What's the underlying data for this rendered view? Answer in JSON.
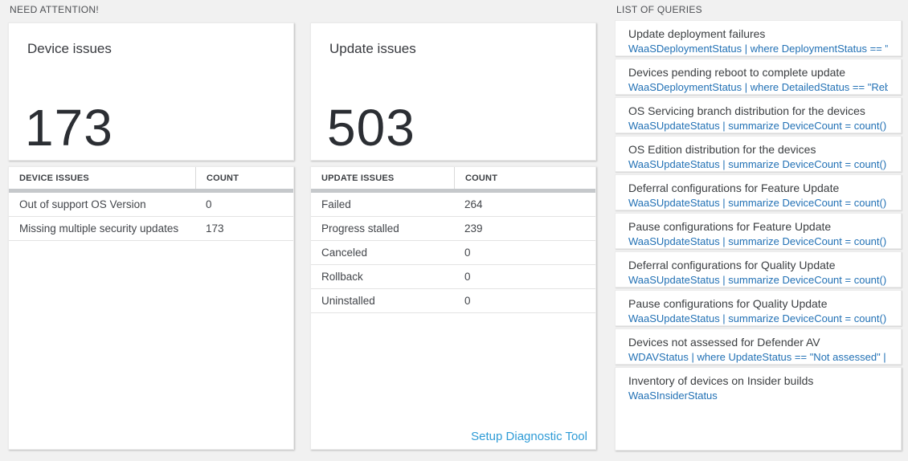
{
  "colors": {
    "page_background": "#f1f1f1",
    "panel_background": "#ffffff",
    "big_number_color": "#2b2e33",
    "query_code_blue": "#2271b5",
    "footer_link_blue": "#2e9bd6",
    "header_divider_gray": "#c5c8cb"
  },
  "need_attention": {
    "section_label": "NEED ATTENTION!",
    "device_card": {
      "title": "Device issues",
      "big_number": "173"
    },
    "device_table": {
      "columns": {
        "name": "DEVICE ISSUES",
        "count": "COUNT"
      },
      "rows": [
        {
          "label": "Out of support OS Version",
          "count": "0"
        },
        {
          "label": "Missing multiple security updates",
          "count": "173"
        }
      ]
    },
    "update_card": {
      "title": "Update issues",
      "big_number": "503"
    },
    "update_table": {
      "columns": {
        "name": "UPDATE ISSUES",
        "count": "COUNT"
      },
      "rows": [
        {
          "label": "Failed",
          "count": "264"
        },
        {
          "label": "Progress stalled",
          "count": "239"
        },
        {
          "label": "Canceled",
          "count": "0"
        },
        {
          "label": "Rollback",
          "count": "0"
        },
        {
          "label": "Uninstalled",
          "count": "0"
        }
      ],
      "footer_link": "Setup Diagnostic Tool"
    }
  },
  "queries": {
    "section_label": "LIST OF QUERIES",
    "items": [
      {
        "title": "Update deployment failures",
        "query": "WaaSDeploymentStatus | where DeploymentStatus == \"Failed\" |..."
      },
      {
        "title": "Devices pending reboot to complete update",
        "query": "WaaSDeploymentStatus | where DetailedStatus == \"Reboot pend..."
      },
      {
        "title": "OS Servicing branch distribution for the devices",
        "query": "WaaSUpdateStatus | summarize DeviceCount = count() by OSSer..."
      },
      {
        "title": "OS Edition distribution for the devices",
        "query": "WaaSUpdateStatus | summarize DeviceCount = count() by OSEdit..."
      },
      {
        "title": "Deferral configurations for Feature Update",
        "query": "WaaSUpdateStatus | summarize DeviceCount = count() by Featur..."
      },
      {
        "title": "Pause configurations for Feature Update",
        "query": "WaaSUpdateStatus | summarize DeviceCount = count() by Featur..."
      },
      {
        "title": "Deferral configurations for Quality Update",
        "query": "WaaSUpdateStatus | summarize DeviceCount = count() by Qualit..."
      },
      {
        "title": "Pause configurations for Quality Update",
        "query": "WaaSUpdateStatus | summarize DeviceCount = count() by Qualit..."
      },
      {
        "title": "Devices not assessed for Defender AV",
        "query": "WDAVStatus | where UpdateStatus == \"Not assessed\" | render ta..."
      },
      {
        "title": "Inventory of devices on Insider builds",
        "query": "WaaSInsiderStatus"
      }
    ]
  }
}
